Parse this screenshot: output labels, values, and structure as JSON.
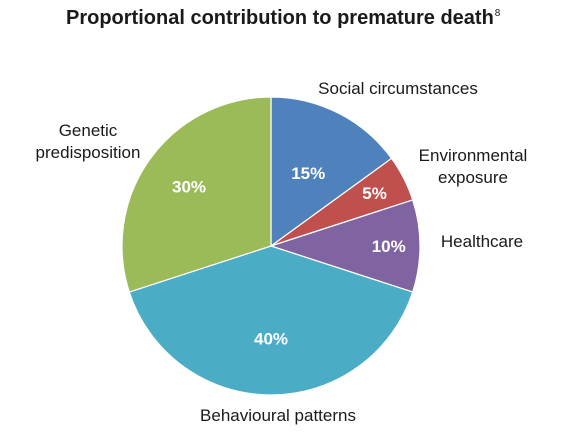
{
  "chart_data": {
    "type": "pie",
    "title": "Proportional contribution to premature death",
    "title_superscript": "8",
    "slices": [
      {
        "label": [
          "Social circumstances"
        ],
        "value": 15,
        "value_label": "15%",
        "color": "#4f81bd"
      },
      {
        "label": [
          "Environmental",
          "exposure"
        ],
        "value": 5,
        "value_label": "5%",
        "color": "#c0504d"
      },
      {
        "label": [
          "Healthcare"
        ],
        "value": 10,
        "value_label": "10%",
        "color": "#8064a2"
      },
      {
        "label": [
          "Behavioural patterns"
        ],
        "value": 40,
        "value_label": "40%",
        "color": "#4bacc6"
      },
      {
        "label": [
          "Genetic",
          "predisposition"
        ],
        "value": 30,
        "value_label": "30%",
        "color": "#9bbb59"
      }
    ],
    "legend": "none",
    "start_angle": "12 o'clock",
    "direction": "clockwise"
  }
}
